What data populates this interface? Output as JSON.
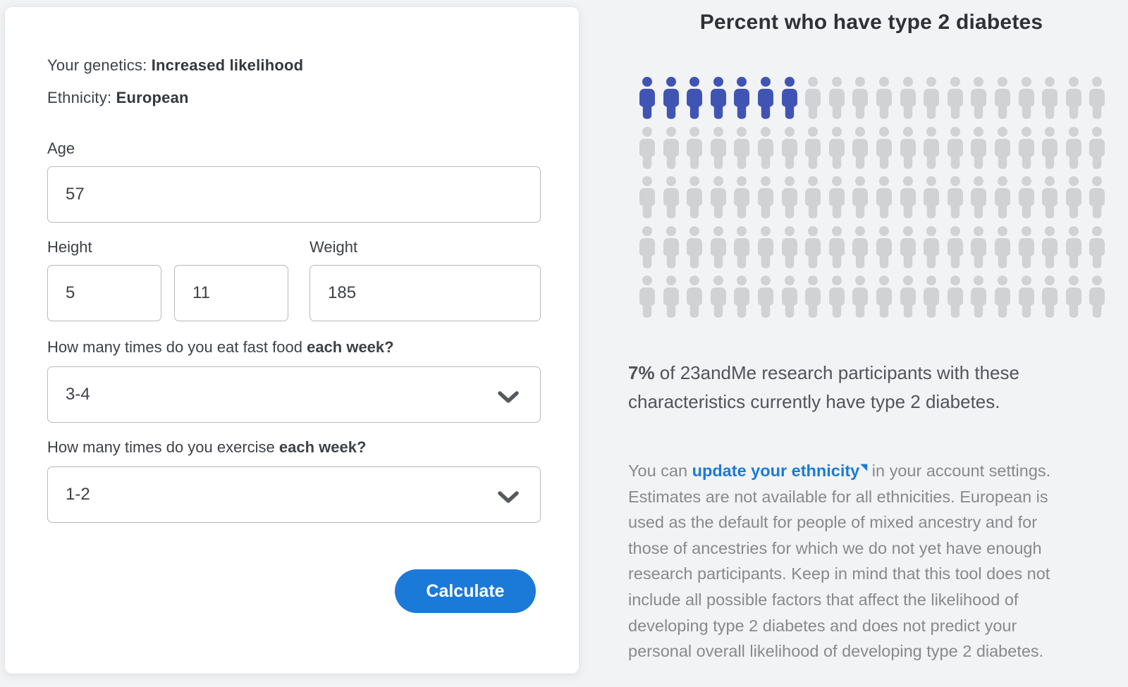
{
  "form": {
    "genetics_label": "Your genetics: ",
    "genetics_value": "Increased likelihood",
    "ethnicity_label": "Ethnicity: ",
    "ethnicity_value": "European",
    "age_label": "Age",
    "age_value": "57",
    "height_label": "Height",
    "height_feet_value": "5",
    "height_inches_value": "11",
    "weight_label": "Weight",
    "weight_value": "185",
    "fastfood_question_prefix": "How many times do you eat fast food ",
    "fastfood_question_bold": "each week?",
    "fastfood_selected_value": "3-4",
    "exercise_question_prefix": "How many times do you exercise ",
    "exercise_question_bold": "each week?",
    "exercise_selected_value": "1-2",
    "calculate_label": "Calculate"
  },
  "result_panel": {
    "title": "Percent who have type 2 diabetes",
    "percent_value": "7%",
    "result_text_after_percent": " of 23andMe research participants with these characteristics currently have type 2 diabetes.",
    "disclaimer_prefix": "You can ",
    "ethnicity_link_text": "update your ethnicity",
    "external_link_glyph": "◥",
    "disclaimer_suffix": " in your account settings. Estimates are not available for all ethnicities. European is used as the default for people of mixed ancestry and for those of ancestries for which we do not yet have enough research participants. Keep in mind that this tool does not include all possible factors that affect the likelihood of developing type 2 diabetes and does not predict your personal overall likelihood of developing type 2 diabetes."
  },
  "chart_data": {
    "type": "pictogram",
    "title": "Percent who have type 2 diabetes",
    "percent": 7,
    "total_icons": 100,
    "filled_icons": 7,
    "columns": 20,
    "rows": 5,
    "filled_color": "#4055b3",
    "empty_color": "#d0d2d3"
  },
  "colors": {
    "page_background": "#f2f3f5",
    "card_background": "#ffffff",
    "accent_blue": "#1b7ad8",
    "pictogram_blue": "#4055b3",
    "pictogram_gray": "#d0d2d3",
    "input_border": "#b6b9bc",
    "dark_text": "#3e4146",
    "muted_text": "#87898c"
  }
}
